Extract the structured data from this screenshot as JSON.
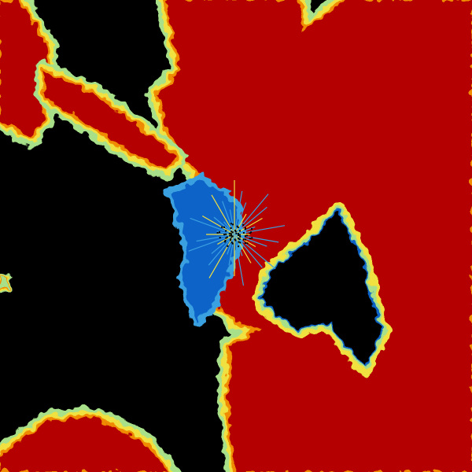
{
  "radar": {
    "background_color": "#000000",
    "palette": {
      "blue": "#0a64c8",
      "light_blue": "#3aa0e0",
      "green": "#a8e08a",
      "yellow": "#f0e040",
      "orange": "#f08a00",
      "red": "#d22000",
      "dark_red": "#b40000"
    }
  }
}
